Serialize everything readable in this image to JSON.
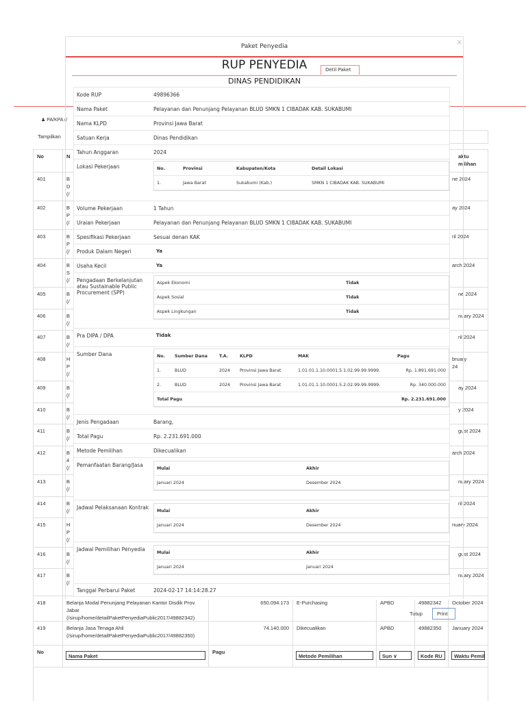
{
  "background": {
    "user_label": "PA/KPA (/",
    "show_label": "Tampilkan",
    "headers": {
      "no": "No",
      "nama": "N",
      "waktu": "aktu\nmilihan"
    },
    "rows": [
      {
        "no": "401",
        "nama": "B\nD\n(/",
        "waktu": "ne 2024"
      },
      {
        "no": "402",
        "nama": "B\nP\n(/",
        "waktu": "ay 2024"
      },
      {
        "no": "403",
        "nama": "B\nP\n(/",
        "waktu": "ril 2024"
      },
      {
        "no": "404",
        "nama": "B\nS\n(/",
        "waktu": "arch 2024"
      },
      {
        "no": "405",
        "nama": "B\n(/",
        "waktu": "ne 2024"
      },
      {
        "no": "406",
        "nama": "B\n(/",
        "waktu": "nuary 2024"
      },
      {
        "no": "407",
        "nama": "B\n(/",
        "waktu": "ril 2024"
      },
      {
        "no": "408",
        "nama": "H\nP\n(/",
        "waktu": "bruary\n24"
      },
      {
        "no": "409",
        "nama": "B\n(/",
        "waktu": "ay 2024"
      },
      {
        "no": "410",
        "nama": "B\n(/",
        "waktu": "y 2024"
      },
      {
        "no": "411",
        "nama": "B\n(/",
        "waktu": "gust 2024"
      },
      {
        "no": "412",
        "nama": "B\n4\n(/",
        "waktu": "arch 2024"
      },
      {
        "no": "413",
        "nama": "B\n(/",
        "waktu": "nuary 2024"
      },
      {
        "no": "414",
        "nama": "B\n(/",
        "waktu": "ril 2024"
      },
      {
        "no": "415",
        "nama": "H\nP\n(/",
        "waktu": "nuary 2024"
      },
      {
        "no": "416",
        "nama": "B\n(/",
        "waktu": "gust 2024"
      },
      {
        "no": "417",
        "nama": "B\n(/",
        "waktu": "nuary 2024"
      },
      {
        "no": "418",
        "nama": "Belanja Modal Penunjang Pelayanan Kantor Disdik Prov. Jabar (/sirup/home/detailPaketPenyediaPublic2017/49882342)",
        "pagu": "650.094.173",
        "metode": "E-Purchasing",
        "sumber": "APBD",
        "kode": "49882342",
        "waktu": "October 2024"
      },
      {
        "no": "419",
        "nama": "Belanja Jasa Tenaga Ahli (/sirup/home/detailPaketPenyediaPublic2017/49882350)",
        "pagu": "74.140.000",
        "metode": "Dikecualikan",
        "sumber": "APBD",
        "kode": "49882350",
        "waktu": "January 2024"
      }
    ],
    "footer": {
      "no": "No",
      "nama": "Nama Paket",
      "pagu": "Pagu",
      "metode": "Metode Pemilihan",
      "sumber": "Sun",
      "kode": "Kode RU",
      "waktu": "Waktu Pemil"
    }
  },
  "modal": {
    "title": "Paket Penyedia",
    "close": "×",
    "heading": "RUP PENYEDIA",
    "tab": "Detil Paket",
    "subheading": "DINAS PENDIDIKAN",
    "fields": {
      "kode_rup": {
        "label": "Kode RUP",
        "value": "49896366"
      },
      "nama_paket": {
        "label": "Nama Paket",
        "value": "Pelayanan dan Penunjang Pelayanan BLUD SMKN 1 CIBADAK KAB. SUKABUMI"
      },
      "nama_klpd": {
        "label": "Nama KLPD",
        "value": "Provinsi Jawa Barat"
      },
      "satuan_kerja": {
        "label": "Satuan Kerja",
        "value": "Dinas Pendidikan"
      },
      "tahun": {
        "label": "Tahun Anggaran",
        "value": "2024"
      },
      "lokasi": {
        "label": "Lokasi Pekerjaan",
        "headers": [
          "No.",
          "Provinsi",
          "Kabupaten/Kota",
          "Detail Lokasi"
        ],
        "row": [
          "1.",
          "Jawa Barat",
          "Sukabumi (Kab.)",
          "SMKN 1 CIBADAK KAB. SUKABUMI"
        ]
      },
      "volume": {
        "label": "Volume Pekerjaan",
        "value": "1 Tahun"
      },
      "uraian": {
        "label": "Uraian Pekerjaan",
        "value": "Pelayanan dan Penunjang Pelayanan BLUD SMKN 1 CIBADAK KAB. SUKABUMI"
      },
      "spesifikasi": {
        "label": "Spesifikasi Pekerjaan",
        "value": "Sesuai denan KAK"
      },
      "pdn": {
        "label": "Produk Dalam Negeri",
        "value": "Ya"
      },
      "usaha_kecil": {
        "label": "Usaha Kecil",
        "value": "Ya"
      },
      "spp": {
        "label": "Pengadaan Berkelanjutan atau Sustainable Public Procurement (SPP)",
        "aspects": [
          {
            "name": "Aspek Ekonomi",
            "value": "Tidak"
          },
          {
            "name": "Aspek Sosial",
            "value": "Tidak"
          },
          {
            "name": "Aspek Lingkungan",
            "value": "Tidak"
          }
        ]
      },
      "pra_dipa": {
        "label": "Pra DIPA / DPA",
        "value": "Tidak"
      },
      "sumber_dana": {
        "label": "Sumber Dana",
        "headers": [
          "No.",
          "Sumber Dana",
          "T.A.",
          "KLPD",
          "MAK",
          "Pagu"
        ],
        "rows": [
          [
            "1.",
            "BLUD",
            "2024",
            "Provinsi Jawa Barat",
            "1.01.01.1.10.0001.5.1.02.99.99.9999.",
            "Rp. 1.891.691.000"
          ],
          [
            "2.",
            "BLUD",
            "2024",
            "Provinsi Jawa Barat",
            "1.01.01.1.10.0001.5.2.02.99.99.9999.",
            "Rp. 340.000.000"
          ]
        ],
        "total_label": "Total Pagu",
        "total": "Rp. 2.231.691.000"
      },
      "jenis": {
        "label": "Jenis Pengadaan",
        "value": "Barang,"
      },
      "total_pagu": {
        "label": "Total Pagu",
        "value": "Rp. 2.231.691.000"
      },
      "metode": {
        "label": "Metode Pemilihan",
        "value": "Dikecualikan"
      },
      "pemanfaatan": {
        "label": "Pemanfaatan Barang/Jasa",
        "h1": "Mulai",
        "h2": "Akhir",
        "v1": "Januari 2024",
        "v2": "Desember 2024"
      },
      "pelaksanaan": {
        "label": "Jadwal Pelaksanaan Kontrak",
        "h1": "Mulai",
        "h2": "Akhir",
        "v1": "Januari 2024",
        "v2": "Desember 2024"
      },
      "pemilihan": {
        "label": "Jadwal Pemilihan Penyedia",
        "h1": "Mulai",
        "h2": "Akhir",
        "v1": "Januari 2024",
        "v2": "Januari 2024"
      },
      "tanggal": {
        "label": "Tanggal Perbarui Paket",
        "value": "2024-02-17 14:14:28.27"
      }
    },
    "close_button": "Tutup",
    "print_button": "Print"
  }
}
